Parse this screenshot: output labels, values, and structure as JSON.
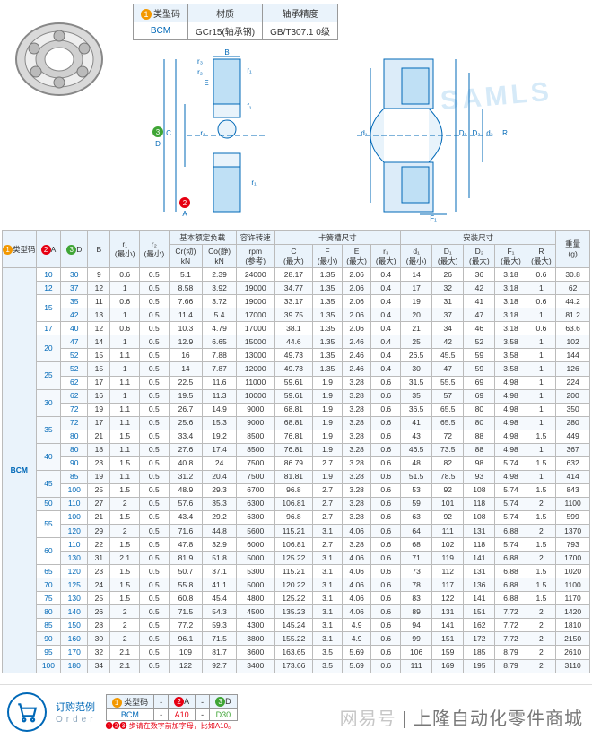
{
  "spec_header": {
    "col1": "类型码",
    "col1_badge": "1",
    "col2": "材质",
    "col3": "轴承精度",
    "val1": "BCM",
    "val2": "GCr15(轴承钢)",
    "val3": "GB/T307.1 0级"
  },
  "diagram_labels": {
    "B": "B",
    "r2": "r₂",
    "r3": "r₃",
    "E": "E",
    "r1": "r₁",
    "f1": "f₁",
    "C": "C",
    "D": "D",
    "A": "A",
    "Da": "D₁",
    "da": "d₁",
    "Db": "D₂",
    "db": "d₂",
    "R": "R",
    "Fa": "F₁",
    "badge2": "2",
    "badge3": "3"
  },
  "watermark": "SAMLS",
  "headers": {
    "typecode": "类型码",
    "A": "A",
    "D": "D",
    "B": "B",
    "r1": "r₁\n(最小)",
    "r2": "r₂\n(最小)",
    "load_group": "基本额定负载",
    "Cr": "Cr(动)\nkN",
    "Cor": "Co(静)\nkN",
    "rpm": "容许转速",
    "rpm2": "rpm\n(参考)",
    "ring_group": "卡簧槽尺寸",
    "C": "C\n(最大)",
    "F": "F\n(最小)",
    "E": "E\n(最大)",
    "r3": "r₃\n(最大)",
    "install_group": "安装尺寸",
    "d1": "d₁\n(最小)",
    "D1": "D₁\n(最大)",
    "D2": "D₂\n(最大)",
    "F1": "F₁\n(最大)",
    "R": "R\n(最大)",
    "weight": "重量\n(g)"
  },
  "typecode": "BCM",
  "rows": [
    {
      "A": "10",
      "D": "30",
      "B": 9,
      "r1": 0.6,
      "r2": 0.5,
      "Cr": 5.1,
      "Cor": 2.39,
      "rpm": 24000,
      "C": 28.17,
      "F": 1.35,
      "E": 2.06,
      "r3": 0.4,
      "d1": 14,
      "D1": 26,
      "D2": 36,
      "F1": 3.18,
      "R": 0.6,
      "wt": 30.8
    },
    {
      "A": "12",
      "D": "37",
      "B": 12,
      "r1": 1,
      "r2": 0.5,
      "Cr": 8.58,
      "Cor": 3.92,
      "rpm": 19000,
      "C": 34.77,
      "F": 1.35,
      "E": 2.06,
      "r3": 0.4,
      "d1": 17,
      "D1": 32,
      "D2": 42,
      "F1": 3.18,
      "R": 1,
      "wt": 62
    },
    {
      "A": "15",
      "D": "35",
      "B": 11,
      "r1": 0.6,
      "r2": 0.5,
      "Cr": 7.66,
      "Cor": 3.72,
      "rpm": 19000,
      "C": 33.17,
      "F": 1.35,
      "E": 2.06,
      "r3": 0.4,
      "d1": 19,
      "D1": 31,
      "D2": 41,
      "F1": 3.18,
      "R": 0.6,
      "wt": 44.2,
      "rs": 2
    },
    {
      "A": "",
      "D": "42",
      "B": 13,
      "r1": 1,
      "r2": 0.5,
      "Cr": 11.4,
      "Cor": 5.4,
      "rpm": 17000,
      "C": 39.75,
      "F": 1.35,
      "E": 2.06,
      "r3": 0.4,
      "d1": 20,
      "D1": 37,
      "D2": 47,
      "F1": 3.18,
      "R": 1,
      "wt": 81.2
    },
    {
      "A": "17",
      "D": "40",
      "B": 12,
      "r1": 0.6,
      "r2": 0.5,
      "Cr": 10.3,
      "Cor": 4.79,
      "rpm": 17000,
      "C": 38.1,
      "F": 1.35,
      "E": 2.06,
      "r3": 0.4,
      "d1": 21,
      "D1": 34,
      "D2": 46,
      "F1": 3.18,
      "R": 0.6,
      "wt": 63.6
    },
    {
      "A": "20",
      "D": "47",
      "B": 14,
      "r1": 1,
      "r2": 0.5,
      "Cr": 12.9,
      "Cor": 6.65,
      "rpm": 15000,
      "C": 44.6,
      "F": 1.35,
      "E": 2.46,
      "r3": 0.4,
      "d1": 25,
      "D1": 42,
      "D2": 52,
      "F1": 3.58,
      "R": 1,
      "wt": 102,
      "rs": 2
    },
    {
      "A": "",
      "D": "52",
      "B": 15,
      "r1": 1.1,
      "r2": 0.5,
      "Cr": 16,
      "Cor": 7.88,
      "rpm": 13000,
      "C": 49.73,
      "F": 1.35,
      "E": 2.46,
      "r3": 0.4,
      "d1": 26.5,
      "D1": 45.5,
      "D2": 59,
      "F1": 3.58,
      "R": 1,
      "wt": 144
    },
    {
      "A": "25",
      "D": "52",
      "B": 15,
      "r1": 1,
      "r2": 0.5,
      "Cr": 14,
      "Cor": 7.87,
      "rpm": 12000,
      "C": 49.73,
      "F": 1.35,
      "E": 2.46,
      "r3": 0.4,
      "d1": 30,
      "D1": 47,
      "D2": 59,
      "F1": 3.58,
      "R": 1,
      "wt": 126,
      "rs": 2
    },
    {
      "A": "",
      "D": "62",
      "B": 17,
      "r1": 1.1,
      "r2": 0.5,
      "Cr": 22.5,
      "Cor": 11.6,
      "rpm": 11000,
      "C": 59.61,
      "F": 1.9,
      "E": 3.28,
      "r3": 0.6,
      "d1": 31.5,
      "D1": 55.5,
      "D2": 69,
      "F1": 4.98,
      "R": 1,
      "wt": 224
    },
    {
      "A": "30",
      "D": "62",
      "B": 16,
      "r1": 1,
      "r2": 0.5,
      "Cr": 19.5,
      "Cor": 11.3,
      "rpm": 10000,
      "C": 59.61,
      "F": 1.9,
      "E": 3.28,
      "r3": 0.6,
      "d1": 35,
      "D1": 57,
      "D2": 69,
      "F1": 4.98,
      "R": 1,
      "wt": 200,
      "rs": 2
    },
    {
      "A": "",
      "D": "72",
      "B": 19,
      "r1": 1.1,
      "r2": 0.5,
      "Cr": 26.7,
      "Cor": 14.9,
      "rpm": 9000,
      "C": 68.81,
      "F": 1.9,
      "E": 3.28,
      "r3": 0.6,
      "d1": 36.5,
      "D1": 65.5,
      "D2": 80,
      "F1": 4.98,
      "R": 1,
      "wt": 350
    },
    {
      "A": "35",
      "D": "72",
      "B": 17,
      "r1": 1.1,
      "r2": 0.5,
      "Cr": 25.6,
      "Cor": 15.3,
      "rpm": 9000,
      "C": 68.81,
      "F": 1.9,
      "E": 3.28,
      "r3": 0.6,
      "d1": 41,
      "D1": 65.5,
      "D2": 80,
      "F1": 4.98,
      "R": 1,
      "wt": 280,
      "rs": 2
    },
    {
      "A": "",
      "D": "80",
      "B": 21,
      "r1": 1.5,
      "r2": 0.5,
      "Cr": 33.4,
      "Cor": 19.2,
      "rpm": 8500,
      "C": 76.81,
      "F": 1.9,
      "E": 3.28,
      "r3": 0.6,
      "d1": 43,
      "D1": 72,
      "D2": 88,
      "F1": 4.98,
      "R": 1.5,
      "wt": 449
    },
    {
      "A": "40",
      "D": "80",
      "B": 18,
      "r1": 1.1,
      "r2": 0.5,
      "Cr": 27.6,
      "Cor": 17.4,
      "rpm": 8500,
      "C": 76.81,
      "F": 1.9,
      "E": 3.28,
      "r3": 0.6,
      "d1": 46.5,
      "D1": 73.5,
      "D2": 88,
      "F1": 4.98,
      "R": 1,
      "wt": 367,
      "rs": 2
    },
    {
      "A": "",
      "D": "90",
      "B": 23,
      "r1": 1.5,
      "r2": 0.5,
      "Cr": 40.8,
      "Cor": 24,
      "rpm": 7500,
      "C": 86.79,
      "F": 2.7,
      "E": 3.28,
      "r3": 0.6,
      "d1": 48,
      "D1": 82,
      "D2": 98,
      "F1": 5.74,
      "R": 1.5,
      "wt": 632
    },
    {
      "A": "45",
      "D": "85",
      "B": 19,
      "r1": 1.1,
      "r2": 0.5,
      "Cr": 31.2,
      "Cor": 20.4,
      "rpm": 7500,
      "C": 81.81,
      "F": 1.9,
      "E": 3.28,
      "r3": 0.6,
      "d1": 51.5,
      "D1": 78.5,
      "D2": 93,
      "F1": 4.98,
      "R": 1,
      "wt": 414,
      "rs": 2
    },
    {
      "A": "",
      "D": "100",
      "B": 25,
      "r1": 1.5,
      "r2": 0.5,
      "Cr": 48.9,
      "Cor": 29.3,
      "rpm": 6700,
      "C": 96.8,
      "F": 2.7,
      "E": 3.28,
      "r3": 0.6,
      "d1": 53,
      "D1": 92,
      "D2": 108,
      "F1": 5.74,
      "R": 1.5,
      "wt": 843
    },
    {
      "A": "50",
      "D": "110",
      "B": 27,
      "r1": 2,
      "r2": 0.5,
      "Cr": 57.6,
      "Cor": 35.3,
      "rpm": 6300,
      "C": 106.81,
      "F": 2.7,
      "E": 3.28,
      "r3": 0.6,
      "d1": 59,
      "D1": 101,
      "D2": 118,
      "F1": 5.74,
      "R": 2,
      "wt": 1100
    },
    {
      "A": "55",
      "D": "100",
      "B": 21,
      "r1": 1.5,
      "r2": 0.5,
      "Cr": 43.4,
      "Cor": 29.2,
      "rpm": 6300,
      "C": 96.8,
      "F": 2.7,
      "E": 3.28,
      "r3": 0.6,
      "d1": 63,
      "D1": 92,
      "D2": 108,
      "F1": 5.74,
      "R": 1.5,
      "wt": 599,
      "rs": 2
    },
    {
      "A": "",
      "D": "120",
      "B": 29,
      "r1": 2,
      "r2": 0.5,
      "Cr": 71.6,
      "Cor": 44.8,
      "rpm": 5600,
      "C": 115.21,
      "F": 3.1,
      "E": 4.06,
      "r3": 0.6,
      "d1": 64,
      "D1": 111,
      "D2": 131,
      "F1": 6.88,
      "R": 2,
      "wt": 1370
    },
    {
      "A": "60",
      "D": "110",
      "B": 22,
      "r1": 1.5,
      "r2": 0.5,
      "Cr": 47.8,
      "Cor": 32.9,
      "rpm": 6000,
      "C": 106.81,
      "F": 2.7,
      "E": 3.28,
      "r3": 0.6,
      "d1": 68,
      "D1": 102,
      "D2": 118,
      "F1": 5.74,
      "R": 1.5,
      "wt": 793,
      "rs": 2
    },
    {
      "A": "",
      "D": "130",
      "B": 31,
      "r1": 2.1,
      "r2": 0.5,
      "Cr": 81.9,
      "Cor": 51.8,
      "rpm": 5000,
      "C": 125.22,
      "F": 3.1,
      "E": 4.06,
      "r3": 0.6,
      "d1": 71,
      "D1": 119,
      "D2": 141,
      "F1": 6.88,
      "R": 2,
      "wt": 1700
    },
    {
      "A": "65",
      "D": "120",
      "B": 23,
      "r1": 1.5,
      "r2": 0.5,
      "Cr": 50.7,
      "Cor": 37.1,
      "rpm": 5300,
      "C": 115.21,
      "F": 3.1,
      "E": 4.06,
      "r3": 0.6,
      "d1": 73,
      "D1": 112,
      "D2": 131,
      "F1": 6.88,
      "R": 1.5,
      "wt": 1020
    },
    {
      "A": "70",
      "D": "125",
      "B": 24,
      "r1": 1.5,
      "r2": 0.5,
      "Cr": 55.8,
      "Cor": 41.1,
      "rpm": 5000,
      "C": 120.22,
      "F": 3.1,
      "E": 4.06,
      "r3": 0.6,
      "d1": 78,
      "D1": 117,
      "D2": 136,
      "F1": 6.88,
      "R": 1.5,
      "wt": 1100
    },
    {
      "A": "75",
      "D": "130",
      "B": 25,
      "r1": 1.5,
      "r2": 0.5,
      "Cr": 60.8,
      "Cor": 45.4,
      "rpm": 4800,
      "C": 125.22,
      "F": 3.1,
      "E": 4.06,
      "r3": 0.6,
      "d1": 83,
      "D1": 122,
      "D2": 141,
      "F1": 6.88,
      "R": 1.5,
      "wt": 1170
    },
    {
      "A": "80",
      "D": "140",
      "B": 26,
      "r1": 2,
      "r2": 0.5,
      "Cr": 71.5,
      "Cor": 54.3,
      "rpm": 4500,
      "C": 135.23,
      "F": 3.1,
      "E": 4.06,
      "r3": 0.6,
      "d1": 89,
      "D1": 131,
      "D2": 151,
      "F1": 7.72,
      "R": 2,
      "wt": 1420
    },
    {
      "A": "85",
      "D": "150",
      "B": 28,
      "r1": 2,
      "r2": 0.5,
      "Cr": 77.2,
      "Cor": 59.3,
      "rpm": 4300,
      "C": 145.24,
      "F": 3.1,
      "E": 4.9,
      "r3": 0.6,
      "d1": 94,
      "D1": 141,
      "D2": 162,
      "F1": 7.72,
      "R": 2,
      "wt": 1810
    },
    {
      "A": "90",
      "D": "160",
      "B": 30,
      "r1": 2,
      "r2": 0.5,
      "Cr": 96.1,
      "Cor": 71.5,
      "rpm": 3800,
      "C": 155.22,
      "F": 3.1,
      "E": 4.9,
      "r3": 0.6,
      "d1": 99,
      "D1": 151,
      "D2": 172,
      "F1": 7.72,
      "R": 2,
      "wt": 2150
    },
    {
      "A": "95",
      "D": "170",
      "B": 32,
      "r1": 2.1,
      "r2": 0.5,
      "Cr": 109,
      "Cor": 81.7,
      "rpm": 3600,
      "C": 163.65,
      "F": 3.5,
      "E": 5.69,
      "r3": 0.6,
      "d1": 106,
      "D1": 159,
      "D2": 185,
      "F1": 8.79,
      "R": 2,
      "wt": 2610
    },
    {
      "A": "100",
      "D": "180",
      "B": 34,
      "r1": 2.1,
      "r2": 0.5,
      "Cr": 122,
      "Cor": 92.7,
      "rpm": 3400,
      "C": 173.66,
      "F": 3.5,
      "E": 5.69,
      "r3": 0.6,
      "d1": 111,
      "D1": 169,
      "D2": 195,
      "F1": 8.79,
      "R": 2,
      "wt": 3110
    }
  ],
  "footer": {
    "title": "订购范例",
    "title_en": "Order",
    "h1": "类型码",
    "h2": "A",
    "h3": "D",
    "b1": "1",
    "b2": "2",
    "b3": "3",
    "v1": "BCM",
    "dash": "-",
    "v2": "A10",
    "v3": "D30",
    "note": "❶❷❸ 步请在数字前加字母，比如A10。",
    "brand1": "网易号",
    "brand2": "上隆自动化零件商城"
  }
}
